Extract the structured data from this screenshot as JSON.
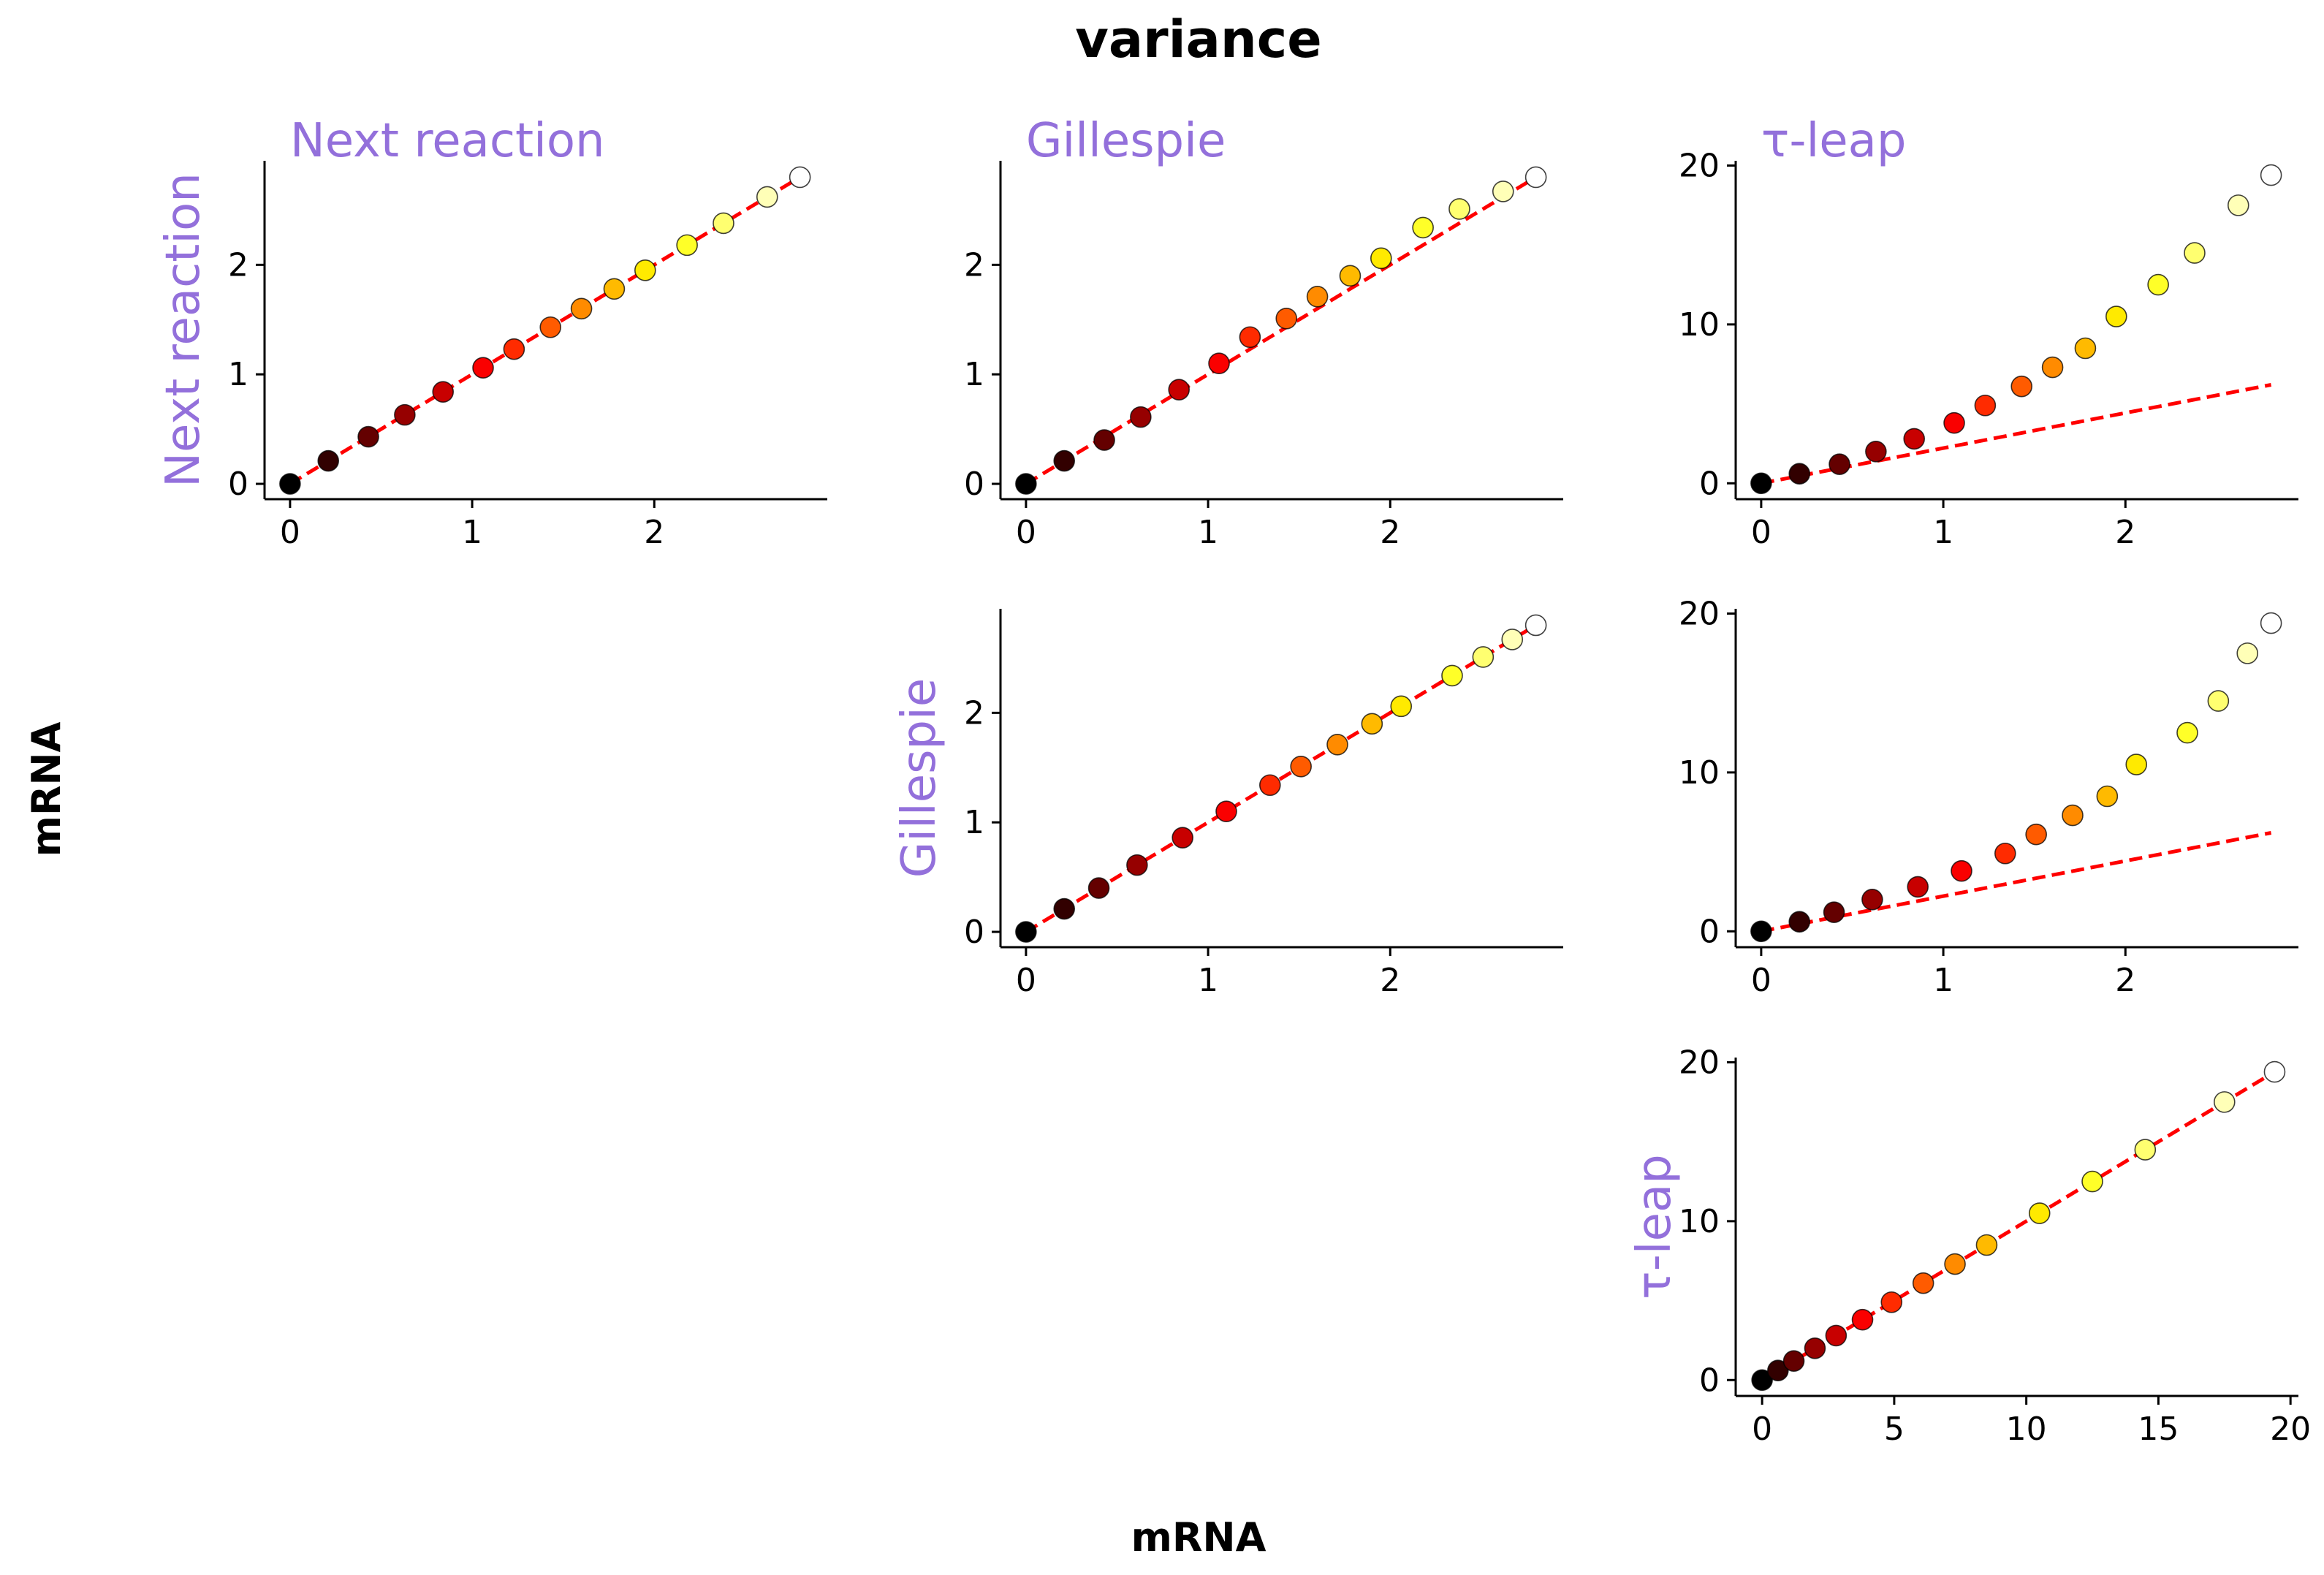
{
  "title": "variance",
  "supxlabel": "mRNA",
  "supylabel": "mRNA",
  "colors": {
    "method_label": "#9370DB",
    "fit_line": "#FF0000",
    "axis": "#000000"
  },
  "colormap": "hot",
  "chart_data": [
    {
      "type": "scatter",
      "row": 0,
      "col": 0,
      "col_title": "Next reaction",
      "row_label": "Next reaction",
      "xticks": [
        0,
        1,
        2
      ],
      "yticks": [
        0,
        1,
        2
      ],
      "xlim": [
        -0.14,
        2.95
      ],
      "ylim": [
        -0.14,
        2.95
      ],
      "fit_line": {
        "x": [
          0,
          2.8
        ],
        "y": [
          0,
          2.8
        ]
      },
      "points": {
        "x": [
          0,
          0.21,
          0.43,
          0.63,
          0.84,
          1.06,
          1.23,
          1.43,
          1.6,
          1.78,
          1.95,
          2.18,
          2.38,
          2.62,
          2.8
        ],
        "y": [
          0,
          0.21,
          0.43,
          0.63,
          0.84,
          1.06,
          1.23,
          1.43,
          1.6,
          1.78,
          1.95,
          2.18,
          2.38,
          2.62,
          2.8
        ]
      }
    },
    {
      "type": "scatter",
      "row": 0,
      "col": 1,
      "col_title": "Gillespie",
      "row_label": "",
      "xticks": [
        0,
        1,
        2
      ],
      "yticks": [
        0,
        1,
        2
      ],
      "xlim": [
        -0.14,
        2.95
      ],
      "ylim": [
        -0.14,
        2.95
      ],
      "fit_line": {
        "x": [
          0,
          2.8
        ],
        "y": [
          0,
          2.8
        ]
      },
      "points": {
        "x": [
          0,
          0.21,
          0.43,
          0.63,
          0.84,
          1.06,
          1.23,
          1.43,
          1.6,
          1.78,
          1.95,
          2.18,
          2.38,
          2.62,
          2.8
        ],
        "y": [
          0,
          0.21,
          0.4,
          0.61,
          0.86,
          1.1,
          1.34,
          1.51,
          1.71,
          1.9,
          2.06,
          2.34,
          2.51,
          2.67,
          2.8
        ]
      }
    },
    {
      "type": "scatter",
      "row": 0,
      "col": 2,
      "col_title": "τ-leap",
      "row_label": "",
      "xticks": [
        0,
        1,
        2
      ],
      "yticks": [
        0,
        10,
        20
      ],
      "xlim": [
        -0.14,
        2.95
      ],
      "ylim": [
        -1.0,
        20.3
      ],
      "fit_line": {
        "x": [
          0,
          2.8
        ],
        "y": [
          0,
          6.2
        ]
      },
      "points": {
        "x": [
          0,
          0.21,
          0.43,
          0.63,
          0.84,
          1.06,
          1.23,
          1.43,
          1.6,
          1.78,
          1.95,
          2.18,
          2.38,
          2.62,
          2.8
        ],
        "y": [
          0,
          0.6,
          1.2,
          2.0,
          2.8,
          3.8,
          4.9,
          6.1,
          7.3,
          8.5,
          10.5,
          12.5,
          14.5,
          17.5,
          19.4
        ]
      }
    },
    {
      "type": "scatter",
      "row": 1,
      "col": 1,
      "col_title": "",
      "row_label": "Gillespie",
      "xticks": [
        0,
        1,
        2
      ],
      "yticks": [
        0,
        1,
        2
      ],
      "xlim": [
        -0.14,
        2.95
      ],
      "ylim": [
        -0.14,
        2.95
      ],
      "fit_line": {
        "x": [
          0,
          2.8
        ],
        "y": [
          0,
          2.8
        ]
      },
      "points": {
        "x": [
          0,
          0.21,
          0.4,
          0.61,
          0.86,
          1.1,
          1.34,
          1.51,
          1.71,
          1.9,
          2.06,
          2.34,
          2.51,
          2.67,
          2.8
        ],
        "y": [
          0,
          0.21,
          0.4,
          0.61,
          0.86,
          1.1,
          1.34,
          1.51,
          1.71,
          1.9,
          2.06,
          2.34,
          2.51,
          2.67,
          2.8
        ]
      }
    },
    {
      "type": "scatter",
      "row": 1,
      "col": 2,
      "col_title": "",
      "row_label": "",
      "xticks": [
        0,
        1,
        2
      ],
      "yticks": [
        0,
        10,
        20
      ],
      "xlim": [
        -0.14,
        2.95
      ],
      "ylim": [
        -1.0,
        20.3
      ],
      "fit_line": {
        "x": [
          0,
          2.8
        ],
        "y": [
          0,
          6.2
        ]
      },
      "points": {
        "x": [
          0,
          0.21,
          0.4,
          0.61,
          0.86,
          1.1,
          1.34,
          1.51,
          1.71,
          1.9,
          2.06,
          2.34,
          2.51,
          2.67,
          2.8
        ],
        "y": [
          0,
          0.6,
          1.2,
          2.0,
          2.8,
          3.8,
          4.9,
          6.1,
          7.3,
          8.5,
          10.5,
          12.5,
          14.5,
          17.5,
          19.4
        ]
      }
    },
    {
      "type": "scatter",
      "row": 2,
      "col": 2,
      "col_title": "",
      "row_label": "τ-leap",
      "xticks": [
        0,
        5,
        10,
        15,
        20
      ],
      "yticks": [
        0,
        10,
        20
      ],
      "xlim": [
        -1.0,
        20.3
      ],
      "ylim": [
        -1.0,
        20.3
      ],
      "fit_line": {
        "x": [
          0,
          19.4
        ],
        "y": [
          0,
          19.4
        ]
      },
      "points": {
        "x": [
          0,
          0.6,
          1.2,
          2.0,
          2.8,
          3.8,
          4.9,
          6.1,
          7.3,
          8.5,
          10.5,
          12.5,
          14.5,
          17.5,
          19.4
        ],
        "y": [
          0,
          0.6,
          1.2,
          2.0,
          2.8,
          3.8,
          4.9,
          6.1,
          7.3,
          8.5,
          10.5,
          12.5,
          14.5,
          17.5,
          19.4
        ]
      }
    }
  ]
}
